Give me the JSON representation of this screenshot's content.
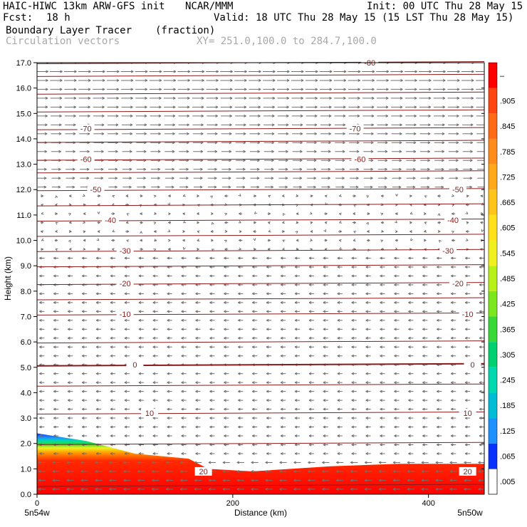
{
  "header": {
    "model_line": "HAIC-HIWC 13km ARW-GFS init",
    "org": "NCAR/MMM",
    "init": "Init: 00 UTC Thu 28 May 15",
    "fcst_label": "Fcst:",
    "fcst_value": "18 h",
    "valid": "Valid: 18 UTC Thu 28 May 15 (15 LST Thu 28 May 15)",
    "field_name": "Boundary Layer Tracer",
    "field_units": "(fraction)",
    "vector_label": "Circulation vectors",
    "xy_range": "XY= 251.0,100.0 to 284.7,100.0"
  },
  "colors": {
    "contour": "#8b1a1a",
    "vector": "#707070",
    "tracer_high": "#ff0000",
    "tracer_low": "#0000ff"
  },
  "chart_data": {
    "type": "heatmap",
    "xlabel": "Distance (km)",
    "ylabel": "Height (km)",
    "xlim": [
      0,
      457
    ],
    "ylim": [
      0,
      17
    ],
    "x_ticks": [
      0,
      200,
      400
    ],
    "y_ticks": [
      "0.0",
      "1.0",
      "2.0",
      "3.0",
      "4.0",
      "5.0",
      "6.0",
      "7.0",
      "8.0",
      "9.0",
      "10.0",
      "11.0",
      "12.0",
      "13.0",
      "14.0",
      "15.0",
      "16.0",
      "17.0"
    ],
    "x_end_labels": {
      "left": "5n54w",
      "right": "5n50w"
    },
    "colorbar": {
      "labels": [
        ".005",
        ".065",
        ".125",
        ".185",
        ".245",
        ".305",
        ".365",
        ".425",
        ".485",
        ".545",
        ".605",
        ".665",
        ".725",
        ".785",
        ".845",
        ".905",
        "–"
      ],
      "colors": [
        "#ffffff",
        "#0a32ff",
        "#1e90ff",
        "#00bcd4",
        "#00d8b0",
        "#00d070",
        "#38d838",
        "#7ce61e",
        "#b8f01a",
        "#f0f01e",
        "#ffe019",
        "#ffc419",
        "#ffa81a",
        "#ff8c1a",
        "#ff6a14",
        "#ff4610",
        "#ff0000"
      ]
    },
    "boundary_layer_top_km": {
      "x": [
        0,
        50,
        100,
        155,
        175,
        220,
        300,
        370,
        457
      ],
      "y": [
        2.4,
        2.1,
        1.6,
        1.4,
        1.0,
        0.9,
        1.1,
        1.2,
        1.2
      ]
    },
    "temperature_contours": [
      {
        "label": "-80",
        "height_km": 17.0,
        "label_x_km": [
          340
        ]
      },
      {
        "label": "-70",
        "height_km": 14.4,
        "label_x_km": [
          50,
          325
        ]
      },
      {
        "label": "-60",
        "height_km": 13.2,
        "label_x_km": [
          50,
          330
        ]
      },
      {
        "label": "-50",
        "height_km": 12.0,
        "label_x_km": [
          60,
          430
        ]
      },
      {
        "label": "-40",
        "height_km": 10.8,
        "label_x_km": [
          75,
          425
        ]
      },
      {
        "label": "-30",
        "height_km": 9.6,
        "label_x_km": [
          90,
          420
        ]
      },
      {
        "label": "-20",
        "height_km": 8.3,
        "label_x_km": [
          90,
          430
        ]
      },
      {
        "label": "-10",
        "height_km": 7.1,
        "label_x_km": [
          90,
          440
        ]
      },
      {
        "label": "0",
        "height_km": 5.1,
        "label_x_km": [
          100,
          445
        ]
      },
      {
        "label": "10",
        "height_km": 3.2,
        "label_x_km": [
          115,
          440
        ]
      },
      {
        "label": "20",
        "height_km": 0.9,
        "label_x_km": [
          170,
          440
        ]
      }
    ],
    "vector_regimes": [
      {
        "from_km": 12.0,
        "to_km": 17.0,
        "direction": "east"
      },
      {
        "from_km": 9.5,
        "to_km": 12.0,
        "direction": "variable"
      },
      {
        "from_km": 0.0,
        "to_km": 9.5,
        "direction": "west"
      }
    ]
  }
}
